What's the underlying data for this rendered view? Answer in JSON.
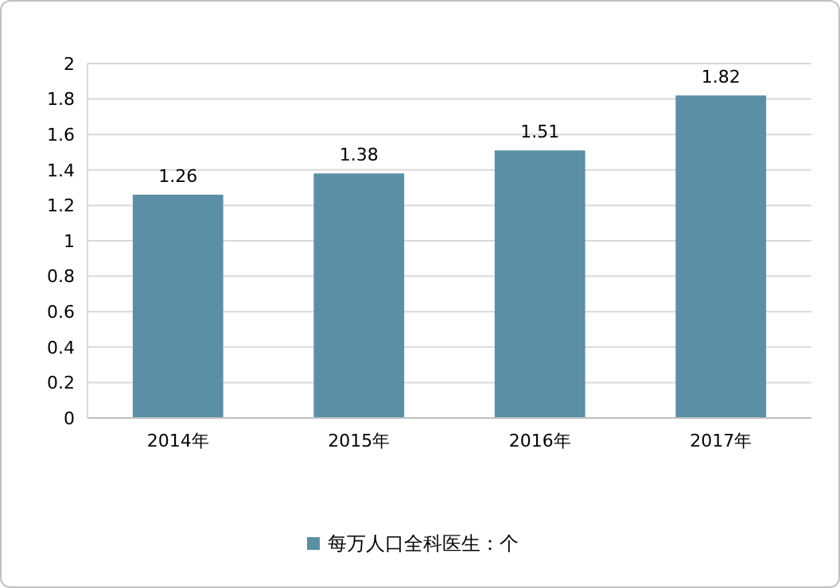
{
  "chart_data": {
    "type": "bar",
    "categories": [
      "2014年",
      "2015年",
      "2016年",
      "2017年"
    ],
    "series": [
      {
        "name": "每万人口全科医生：个",
        "color": "#5b8fa6",
        "values": [
          1.26,
          1.38,
          1.51,
          1.82
        ]
      }
    ],
    "ylim": [
      0,
      2
    ],
    "yticks": [
      0,
      0.2,
      0.4,
      0.6,
      0.8,
      1,
      1.2,
      1.4,
      1.6,
      1.8,
      2
    ],
    "grid": "y",
    "data_labels": true,
    "legend": "bottom"
  }
}
